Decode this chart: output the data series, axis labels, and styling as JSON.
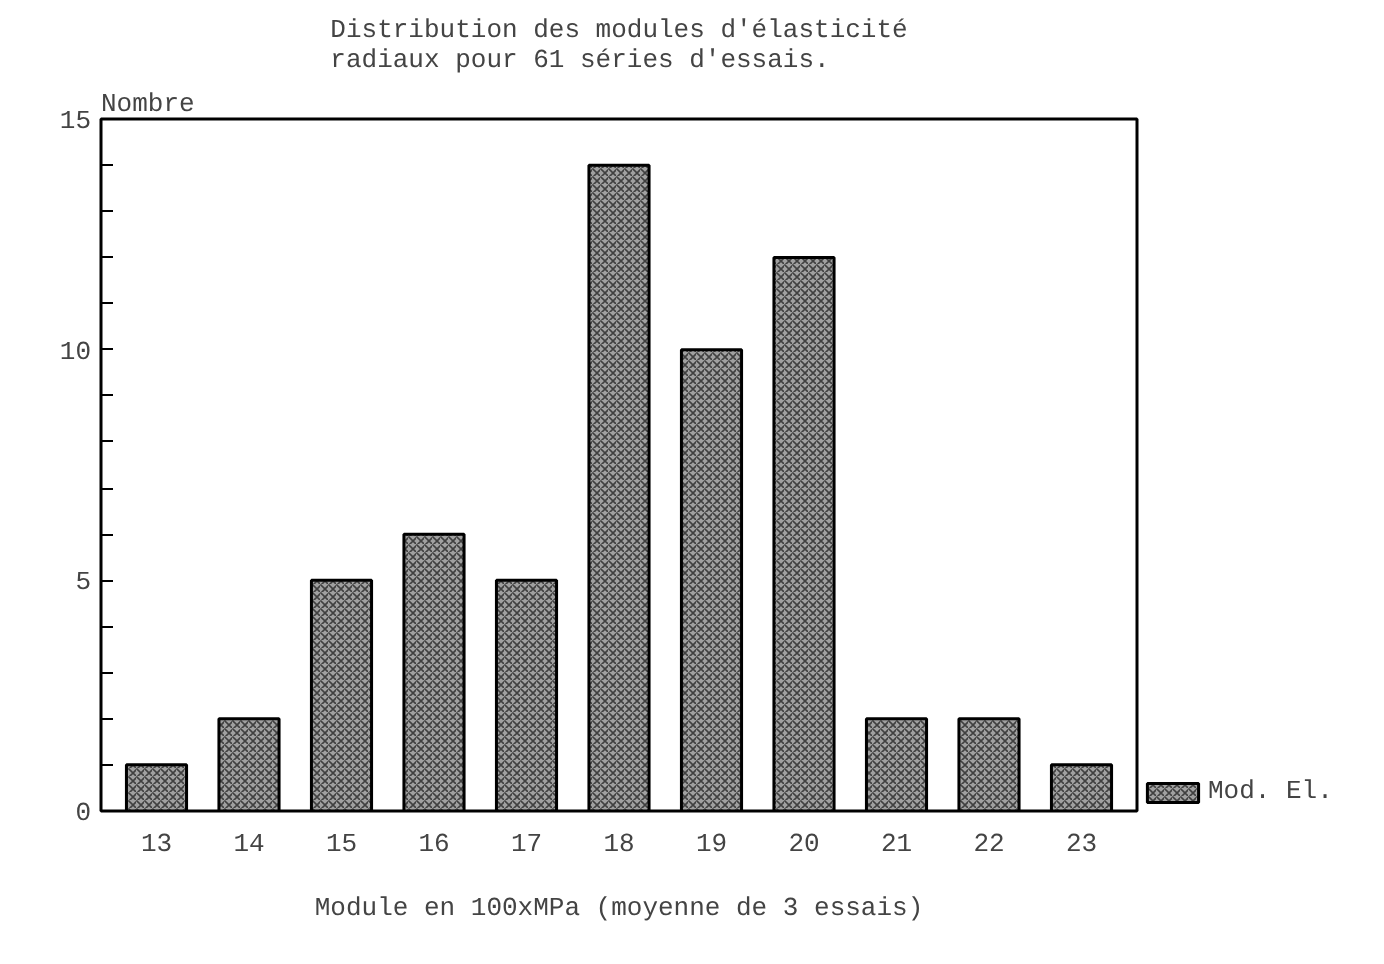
{
  "chart_data": {
    "type": "bar",
    "title": "Distribution des modules d'élasticité\nradiaux pour 61 séries d'essais.",
    "xlabel": "Module en 100xMPa (moyenne de 3 essais)",
    "ylabel": "Nombre",
    "categories": [
      "13",
      "14",
      "15",
      "16",
      "17",
      "18",
      "19",
      "20",
      "21",
      "22",
      "23"
    ],
    "series": [
      {
        "name": "Mod. El.",
        "color": "#a0a0a0",
        "values": [
          1,
          2,
          5,
          6,
          5,
          14,
          10,
          12,
          2,
          2,
          1
        ]
      }
    ],
    "ylim": [
      0,
      15
    ],
    "yticks": [
      0,
      {
        "value": 1,
        "label": null
      },
      {
        "value": 2,
        "label": null
      },
      {
        "value": 3,
        "label": null
      },
      {
        "value": 4,
        "label": null
      },
      5,
      {
        "value": 6,
        "label": null
      },
      {
        "value": 7,
        "label": null
      },
      {
        "value": 8,
        "label": null
      },
      {
        "value": 9,
        "label": null
      },
      10,
      {
        "value": 11,
        "label": null
      },
      {
        "value": 12,
        "label": null
      },
      {
        "value": 13,
        "label": null
      },
      {
        "value": 14,
        "label": null
      },
      15
    ],
    "legend": "bottom right"
  }
}
